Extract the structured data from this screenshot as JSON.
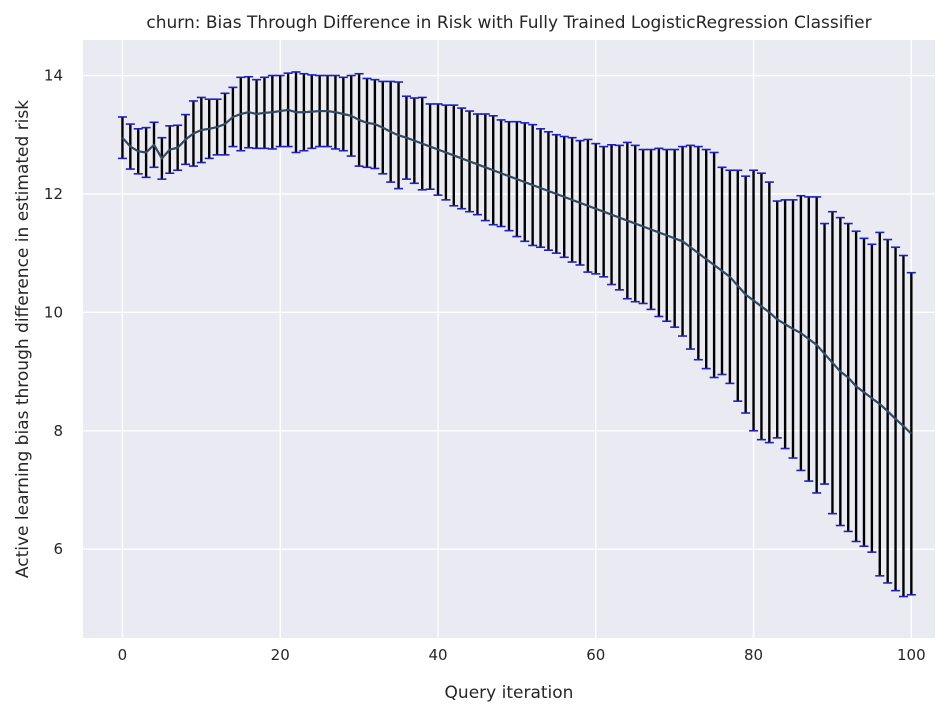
{
  "chart_data": {
    "type": "line",
    "title": "churn: Bias Through Difference in Risk with Fully Trained LogisticRegression Classifier",
    "xlabel": "Query iteration",
    "ylabel": "Active learning bias through difference in estimated risk",
    "xlim": [
      -5,
      103
    ],
    "ylim": [
      4.5,
      14.6
    ],
    "xticks": [
      0,
      20,
      40,
      60,
      80,
      100
    ],
    "yticks": [
      6,
      8,
      10,
      12,
      14
    ],
    "grid": true,
    "colors": {
      "background": "#EAEAF2",
      "grid": "#FFFFFF",
      "mean_line": "#34495E",
      "error_bar": "#000000",
      "cap": "#1F1FBF"
    },
    "x": [
      0,
      1,
      2,
      3,
      4,
      5,
      6,
      7,
      8,
      9,
      10,
      11,
      12,
      13,
      14,
      15,
      16,
      17,
      18,
      19,
      20,
      21,
      22,
      23,
      24,
      25,
      26,
      27,
      28,
      29,
      30,
      31,
      32,
      33,
      34,
      35,
      36,
      37,
      38,
      39,
      40,
      41,
      42,
      43,
      44,
      45,
      46,
      47,
      48,
      49,
      50,
      51,
      52,
      53,
      54,
      55,
      56,
      57,
      58,
      59,
      60,
      61,
      62,
      63,
      64,
      65,
      66,
      67,
      68,
      69,
      70,
      71,
      72,
      73,
      74,
      75,
      76,
      77,
      78,
      79,
      80,
      81,
      82,
      83,
      84,
      85,
      86,
      87,
      88,
      89,
      90,
      91,
      92,
      93,
      94,
      95,
      96,
      97,
      98,
      99,
      100
    ],
    "y": [
      12.95,
      12.8,
      12.72,
      12.7,
      12.83,
      12.6,
      12.75,
      12.78,
      12.92,
      13.02,
      13.08,
      13.1,
      13.13,
      13.18,
      13.3,
      13.35,
      13.38,
      13.35,
      13.37,
      13.38,
      13.4,
      13.42,
      13.38,
      13.38,
      13.39,
      13.4,
      13.4,
      13.38,
      13.35,
      13.32,
      13.25,
      13.2,
      13.18,
      13.12,
      13.05,
      12.99,
      12.95,
      12.9,
      12.85,
      12.8,
      12.75,
      12.7,
      12.65,
      12.6,
      12.55,
      12.5,
      12.45,
      12.4,
      12.35,
      12.3,
      12.25,
      12.2,
      12.15,
      12.1,
      12.05,
      12.0,
      11.95,
      11.9,
      11.85,
      11.8,
      11.75,
      11.7,
      11.65,
      11.6,
      11.55,
      11.5,
      11.45,
      11.4,
      11.35,
      11.3,
      11.25,
      11.2,
      11.1,
      11.0,
      10.9,
      10.8,
      10.7,
      10.6,
      10.45,
      10.3,
      10.2,
      10.1,
      10.0,
      9.88,
      9.8,
      9.72,
      9.65,
      9.55,
      9.45,
      9.3,
      9.15,
      9.0,
      8.9,
      8.75,
      8.65,
      8.55,
      8.45,
      8.33,
      8.2,
      8.08,
      7.95
    ],
    "yerr": [
      0.35,
      0.38,
      0.38,
      0.42,
      0.38,
      0.35,
      0.4,
      0.38,
      0.42,
      0.55,
      0.55,
      0.5,
      0.47,
      0.52,
      0.5,
      0.62,
      0.6,
      0.58,
      0.6,
      0.62,
      0.6,
      0.62,
      0.68,
      0.65,
      0.62,
      0.6,
      0.6,
      0.62,
      0.62,
      0.68,
      0.78,
      0.75,
      0.75,
      0.78,
      0.85,
      0.9,
      0.7,
      0.72,
      0.78,
      0.72,
      0.77,
      0.8,
      0.85,
      0.85,
      0.85,
      0.85,
      0.9,
      0.92,
      0.9,
      0.92,
      0.97,
      1.0,
      1.02,
      1.0,
      1.0,
      1.0,
      1.02,
      1.05,
      1.05,
      1.12,
      1.1,
      1.1,
      1.18,
      1.22,
      1.32,
      1.32,
      1.3,
      1.35,
      1.42,
      1.45,
      1.5,
      1.6,
      1.72,
      1.8,
      1.85,
      1.9,
      1.75,
      1.8,
      1.95,
      2.0,
      2.2,
      2.25,
      2.2,
      2.0,
      2.1,
      2.18,
      2.32,
      2.4,
      2.5,
      2.2,
      2.55,
      2.6,
      2.6,
      2.62,
      2.6,
      2.6,
      2.9,
      2.9,
      2.9,
      2.88,
      2.72
    ]
  }
}
